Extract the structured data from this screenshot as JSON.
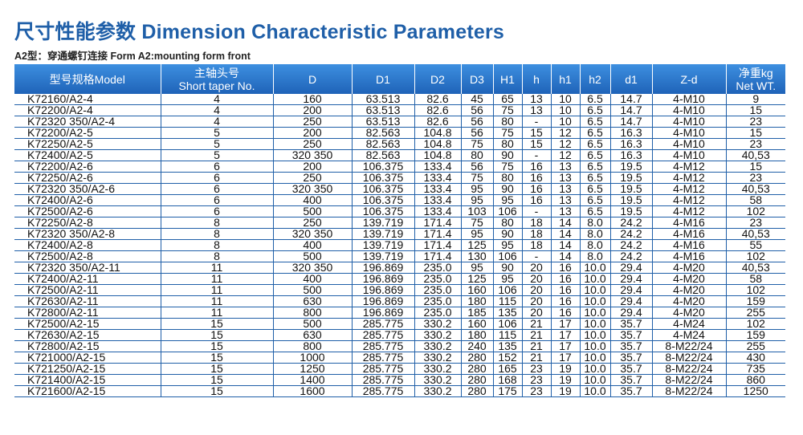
{
  "header": {
    "title": "尺寸性能参数 Dimension Characteristic Parameters",
    "subtitle": "A2型：穿通螺钉连接  Form A2:mounting form front"
  },
  "table": {
    "columns": [
      "型号规格Model",
      "主轴头号\nShort taper No.",
      "D",
      "D1",
      "D2",
      "D3",
      "H1",
      "h",
      "h1",
      "h2",
      "d1",
      "Z-d",
      "净重kg\nNet WT."
    ],
    "rows": [
      [
        "K72160/A2-4",
        "4",
        "160",
        "63.513",
        "82.6",
        "45",
        "65",
        "13",
        "10",
        "6.5",
        "14.7",
        "4-M10",
        "9"
      ],
      [
        "K72200/A2-4",
        "4",
        "200",
        "63.513",
        "82.6",
        "56",
        "75",
        "13",
        "10",
        "6.5",
        "14.7",
        "4-M10",
        "15"
      ],
      [
        "K72320 350/A2-4",
        "4",
        "250",
        "63.513",
        "82.6",
        "56",
        "80",
        "-",
        "10",
        "6.5",
        "14.7",
        "4-M10",
        "23"
      ],
      [
        "K72200/A2-5",
        "5",
        "200",
        "82.563",
        "104.8",
        "56",
        "75",
        "15",
        "12",
        "6.5",
        "16.3",
        "4-M10",
        "15"
      ],
      [
        "K72250/A2-5",
        "5",
        "250",
        "82.563",
        "104.8",
        "75",
        "80",
        "15",
        "12",
        "6.5",
        "16.3",
        "4-M10",
        "23"
      ],
      [
        "K72400/A2-5",
        "5",
        "320 350",
        "82.563",
        "104.8",
        "80",
        "90",
        "-",
        "12",
        "6.5",
        "16.3",
        "4-M10",
        "40,53"
      ],
      [
        "K72200/A2-6",
        "6",
        "200",
        "106.375",
        "133.4",
        "56",
        "75",
        "16",
        "13",
        "6.5",
        "19.5",
        "4-M12",
        "15"
      ],
      [
        "K72250/A2-6",
        "6",
        "250",
        "106.375",
        "133.4",
        "75",
        "80",
        "16",
        "13",
        "6.5",
        "19.5",
        "4-M12",
        "23"
      ],
      [
        "K72320 350/A2-6",
        "6",
        "320 350",
        "106.375",
        "133.4",
        "95",
        "90",
        "16",
        "13",
        "6.5",
        "19.5",
        "4-M12",
        "40,53"
      ],
      [
        "K72400/A2-6",
        "6",
        "400",
        "106.375",
        "133.4",
        "95",
        "95",
        "16",
        "13",
        "6.5",
        "19.5",
        "4-M12",
        "58"
      ],
      [
        "K72500/A2-6",
        "6",
        "500",
        "106.375",
        "133.4",
        "103",
        "106",
        "-",
        "13",
        "6.5",
        "19.5",
        "4-M12",
        "102"
      ],
      [
        "K72250/A2-8",
        "8",
        "250",
        "139.719",
        "171.4",
        "75",
        "80",
        "18",
        "14",
        "8.0",
        "24.2",
        "4-M16",
        "23"
      ],
      [
        "K72320 350/A2-8",
        "8",
        "320 350",
        "139.719",
        "171.4",
        "95",
        "90",
        "18",
        "14",
        "8.0",
        "24.2",
        "4-M16",
        "40,53"
      ],
      [
        "K72400/A2-8",
        "8",
        "400",
        "139.719",
        "171.4",
        "125",
        "95",
        "18",
        "14",
        "8.0",
        "24.2",
        "4-M16",
        "55"
      ],
      [
        "K72500/A2-8",
        "8",
        "500",
        "139.719",
        "171.4",
        "130",
        "106",
        "-",
        "14",
        "8.0",
        "24.2",
        "4-M16",
        "102"
      ],
      [
        "K72320 350/A2-11",
        "11",
        "320 350",
        "196.869",
        "235.0",
        "95",
        "90",
        "20",
        "16",
        "10.0",
        "29.4",
        "4-M20",
        "40,53"
      ],
      [
        "K72400/A2-11",
        "11",
        "400",
        "196.869",
        "235.0",
        "125",
        "95",
        "20",
        "16",
        "10.0",
        "29.4",
        "4-M20",
        "58"
      ],
      [
        "K72500/A2-11",
        "11",
        "500",
        "196.869",
        "235.0",
        "160",
        "106",
        "20",
        "16",
        "10.0",
        "29.4",
        "4-M20",
        "102"
      ],
      [
        "K72630/A2-11",
        "11",
        "630",
        "196.869",
        "235.0",
        "180",
        "115",
        "20",
        "16",
        "10.0",
        "29.4",
        "4-M20",
        "159"
      ],
      [
        "K72800/A2-11",
        "11",
        "800",
        "196.869",
        "235.0",
        "185",
        "135",
        "20",
        "16",
        "10.0",
        "29.4",
        "4-M20",
        "255"
      ],
      [
        "K72500/A2-15",
        "15",
        "500",
        "285.775",
        "330.2",
        "160",
        "106",
        "21",
        "17",
        "10.0",
        "35.7",
        "4-M24",
        "102"
      ],
      [
        "K72630/A2-15",
        "15",
        "630",
        "285.775",
        "330.2",
        "180",
        "115",
        "21",
        "17",
        "10.0",
        "35.7",
        "4-M24",
        "159"
      ],
      [
        "K72800/A2-15",
        "15",
        "800",
        "285.775",
        "330.2",
        "240",
        "135",
        "21",
        "17",
        "10.0",
        "35.7",
        "8-M22/24",
        "255"
      ],
      [
        "K721000/A2-15",
        "15",
        "1000",
        "285.775",
        "330.2",
        "280",
        "152",
        "21",
        "17",
        "10.0",
        "35.7",
        "8-M22/24",
        "430"
      ],
      [
        "K721250/A2-15",
        "15",
        "1250",
        "285.775",
        "330.2",
        "280",
        "165",
        "23",
        "19",
        "10.0",
        "35.7",
        "8-M22/24",
        "735"
      ],
      [
        "K721400/A2-15",
        "15",
        "1400",
        "285.775",
        "330.2",
        "280",
        "168",
        "23",
        "19",
        "10.0",
        "35.7",
        "8-M22/24",
        "860"
      ],
      [
        "K721600/A2-15",
        "15",
        "1600",
        "285.775",
        "330.2",
        "280",
        "175",
        "23",
        "19",
        "10.0",
        "35.7",
        "8-M22/24",
        "1250"
      ]
    ]
  },
  "colors": {
    "title": "#1f5fa8",
    "header_bg_top": "#3d8fe0",
    "header_bg_bottom": "#1f63b8",
    "grid": "#1f5fa8"
  }
}
